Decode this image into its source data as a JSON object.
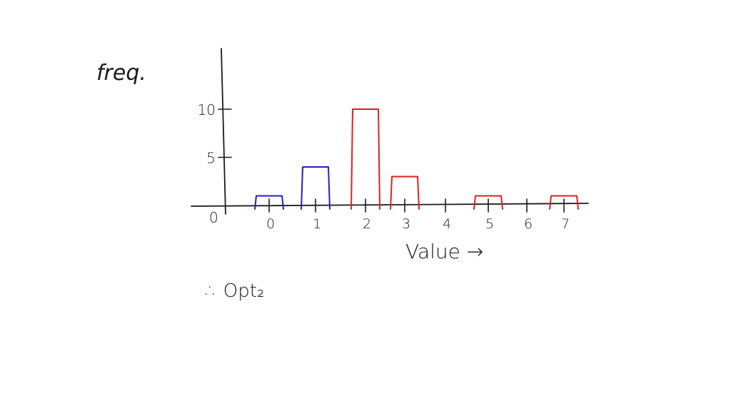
{
  "chart_data": {
    "type": "bar",
    "ylabel": "freq.",
    "xlabel": "Value →",
    "origin_label": "0",
    "categories": [
      "0",
      "1",
      "2",
      "3",
      "4",
      "5",
      "6",
      "7"
    ],
    "x_tick_labels": [
      "0",
      "1",
      "2",
      "3",
      "4",
      "5",
      "6",
      "7"
    ],
    "y_tick_labels": [
      "5",
      "10"
    ],
    "y_ticks": [
      5,
      10
    ],
    "values": [
      1,
      4,
      10,
      3,
      0,
      1,
      0,
      1
    ],
    "ylim": [
      0,
      15
    ],
    "grid": false,
    "bar_colors": [
      "#2222bb",
      "#2222bb",
      "#dd2222",
      "#dd2222",
      "#dd2222",
      "#dd2222",
      "#dd2222",
      "#dd2222"
    ]
  },
  "notes": {
    "conclusion": "∴ Opt₂"
  }
}
